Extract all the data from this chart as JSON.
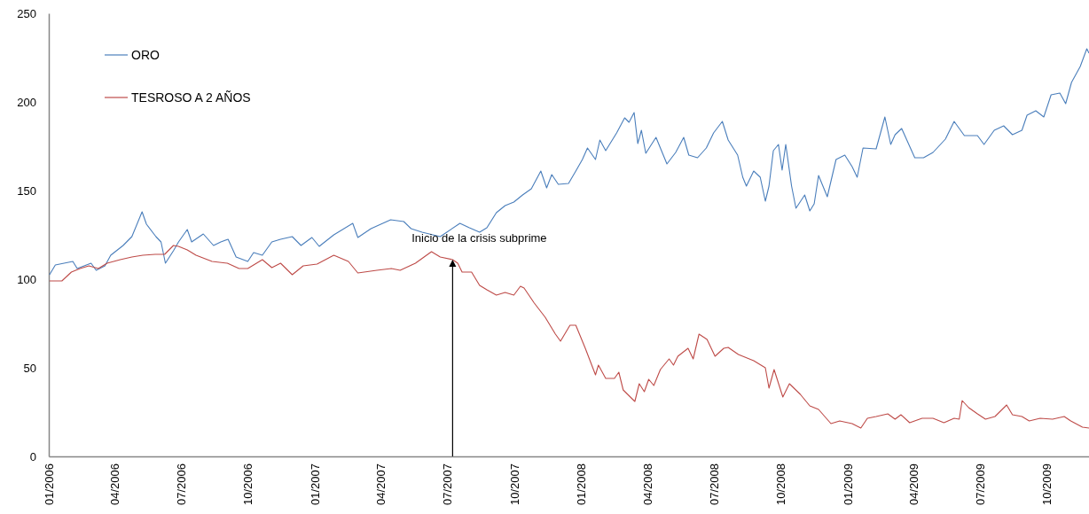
{
  "chart_data": {
    "type": "line",
    "xlim": [
      "2006-01-01",
      "2009-11-28"
    ],
    "xticks": [
      {
        "value": "2006-01-01",
        "label": "01/2006"
      },
      {
        "value": "2006-04-01",
        "label": "04/2006"
      },
      {
        "value": "2006-07-01",
        "label": "07/2006"
      },
      {
        "value": "2006-10-01",
        "label": "10/2006"
      },
      {
        "value": "2007-01-01",
        "label": "01/2007"
      },
      {
        "value": "2007-04-01",
        "label": "04/2007"
      },
      {
        "value": "2007-07-01",
        "label": "07/2007"
      },
      {
        "value": "2007-10-01",
        "label": "10/2007"
      },
      {
        "value": "2008-01-01",
        "label": "01/2008"
      },
      {
        "value": "2008-04-01",
        "label": "04/2008"
      },
      {
        "value": "2008-07-01",
        "label": "07/2008"
      },
      {
        "value": "2008-10-01",
        "label": "10/2008"
      },
      {
        "value": "2009-01-01",
        "label": "01/2009"
      },
      {
        "value": "2009-04-01",
        "label": "04/2009"
      },
      {
        "value": "2009-07-01",
        "label": "07/2009"
      },
      {
        "value": "2009-10-01",
        "label": "10/2009"
      }
    ],
    "ylim": [
      0,
      250
    ],
    "yticks": [
      0,
      50,
      100,
      150,
      200,
      250
    ],
    "grid": false,
    "legend": "top left",
    "marker": "none",
    "line_style": "solid",
    "annotations": [
      {
        "text": "Inicio de la crisis subprime",
        "x": "2007-07-09",
        "y": 111
      }
    ],
    "series": [
      {
        "name": "ORO",
        "color": "#4a7ebb",
        "x": [
          "2006-01-02",
          "2006-01-10",
          "2006-02-03",
          "2006-02-09",
          "2006-02-28",
          "2006-03-07",
          "2006-03-19",
          "2006-03-27",
          "2006-04-13",
          "2006-04-25",
          "2006-05-09",
          "2006-05-15",
          "2006-05-28",
          "2006-06-04",
          "2006-06-10",
          "2006-06-21",
          "2006-06-28",
          "2006-07-10",
          "2006-07-16",
          "2006-08-01",
          "2006-08-15",
          "2006-08-25",
          "2006-09-04",
          "2006-09-15",
          "2006-10-01",
          "2006-10-09",
          "2006-10-21",
          "2006-11-03",
          "2006-11-15",
          "2006-12-01",
          "2006-12-13",
          "2006-12-28",
          "2007-01-07",
          "2007-01-27",
          "2007-02-22",
          "2007-03-01",
          "2007-03-19",
          "2007-04-15",
          "2007-05-03",
          "2007-05-13",
          "2007-05-28",
          "2007-06-22",
          "2007-07-19",
          "2007-08-01",
          "2007-08-15",
          "2007-08-25",
          "2007-09-07",
          "2007-09-19",
          "2007-10-01",
          "2007-10-13",
          "2007-10-25",
          "2007-11-07",
          "2007-11-15",
          "2007-11-22",
          "2007-12-01",
          "2007-12-15",
          "2007-12-25",
          "2008-01-03",
          "2008-01-10",
          "2008-01-21",
          "2008-01-27",
          "2008-02-04",
          "2008-02-19",
          "2008-03-01",
          "2008-03-07",
          "2008-03-14",
          "2008-03-19",
          "2008-03-24",
          "2008-03-30",
          "2008-04-13",
          "2008-04-28",
          "2008-05-10",
          "2008-05-21",
          "2008-05-28",
          "2008-06-09",
          "2008-06-21",
          "2008-07-01",
          "2008-07-13",
          "2008-07-21",
          "2008-08-03",
          "2008-08-10",
          "2008-08-15",
          "2008-08-25",
          "2008-09-03",
          "2008-09-10",
          "2008-09-15",
          "2008-09-21",
          "2008-09-28",
          "2008-10-03",
          "2008-10-08",
          "2008-10-16",
          "2008-10-22",
          "2008-11-03",
          "2008-11-10",
          "2008-11-16",
          "2008-11-22",
          "2008-12-04",
          "2008-12-16",
          "2008-12-28",
          "2009-01-07",
          "2009-01-14",
          "2009-01-22",
          "2009-02-09",
          "2009-02-21",
          "2009-03-01",
          "2009-03-07",
          "2009-03-16",
          "2009-04-03",
          "2009-04-15",
          "2009-04-28",
          "2009-05-15",
          "2009-05-27",
          "2009-06-10",
          "2009-06-28",
          "2009-07-07",
          "2009-07-21",
          "2009-08-03",
          "2009-08-15",
          "2009-08-28",
          "2009-09-04",
          "2009-09-16",
          "2009-09-27",
          "2009-10-07",
          "2009-10-19",
          "2009-10-27",
          "2009-11-04",
          "2009-11-16",
          "2009-11-25",
          "2009-11-28"
        ],
        "values": [
          102.5,
          108,
          110,
          106,
          109,
          105,
          107.5,
          113.5,
          119,
          124,
          138,
          131,
          124,
          121,
          109,
          116,
          121,
          128,
          121,
          125.5,
          119,
          121,
          122.5,
          112.5,
          110,
          115,
          113.5,
          121,
          122.5,
          124,
          119,
          123.5,
          118.5,
          125,
          131.5,
          123.5,
          128.5,
          133.5,
          132.5,
          128.5,
          126.5,
          124,
          131.5,
          129,
          126.5,
          129,
          137.5,
          141.5,
          143.5,
          147.5,
          151,
          161,
          151.5,
          159,
          153.5,
          154,
          161,
          167.5,
          174,
          167.5,
          178.5,
          172.5,
          182.5,
          191,
          188.5,
          194,
          176.5,
          184,
          171,
          180,
          165,
          171.5,
          180,
          170,
          168.5,
          174,
          182.5,
          189,
          178.5,
          170,
          157.5,
          152.5,
          161,
          157.5,
          144,
          152.5,
          172.5,
          176,
          161.5,
          176,
          152.5,
          140,
          147.5,
          138.5,
          142.5,
          158.5,
          146.5,
          167.5,
          170,
          163.5,
          157.5,
          174,
          173.5,
          191.5,
          176,
          181.5,
          185,
          168.5,
          168.5,
          171.5,
          179,
          189,
          181,
          181,
          176,
          184,
          186.5,
          181.5,
          184,
          192.5,
          195,
          191.5,
          204,
          205,
          199,
          211,
          220,
          230,
          227.5
        ]
      },
      {
        "name": "TESROSO A 2 AÑOS",
        "color": "#be4b48",
        "x": [
          "2006-01-02",
          "2006-01-19",
          "2006-02-01",
          "2006-02-13",
          "2006-02-25",
          "2006-03-10",
          "2006-03-22",
          "2006-04-09",
          "2006-04-25",
          "2006-05-10",
          "2006-05-27",
          "2006-06-09",
          "2006-06-21",
          "2006-06-28",
          "2006-07-10",
          "2006-07-22",
          "2006-08-13",
          "2006-09-03",
          "2006-09-19",
          "2006-10-01",
          "2006-10-21",
          "2006-11-03",
          "2006-11-15",
          "2006-12-01",
          "2006-12-16",
          "2007-01-04",
          "2007-01-27",
          "2007-02-16",
          "2007-03-01",
          "2007-03-27",
          "2007-04-16",
          "2007-04-28",
          "2007-05-19",
          "2007-06-10",
          "2007-06-22",
          "2007-07-09",
          "2007-07-16",
          "2007-07-22",
          "2007-08-04",
          "2007-08-15",
          "2007-08-25",
          "2007-09-07",
          "2007-09-19",
          "2007-10-01",
          "2007-10-10",
          "2007-10-15",
          "2007-10-29",
          "2007-11-13",
          "2007-11-27",
          "2007-12-04",
          "2007-12-17",
          "2007-12-25",
          "2008-01-07",
          "2008-01-21",
          "2008-01-25",
          "2008-02-04",
          "2008-02-16",
          "2008-02-22",
          "2008-02-28",
          "2008-03-15",
          "2008-03-21",
          "2008-03-28",
          "2008-04-03",
          "2008-04-10",
          "2008-04-19",
          "2008-05-01",
          "2008-05-07",
          "2008-05-13",
          "2008-05-27",
          "2008-06-03",
          "2008-06-11",
          "2008-06-22",
          "2008-07-03",
          "2008-07-15",
          "2008-07-21",
          "2008-08-04",
          "2008-08-25",
          "2008-09-10",
          "2008-09-15",
          "2008-09-22",
          "2008-10-04",
          "2008-10-13",
          "2008-10-28",
          "2008-11-10",
          "2008-11-22",
          "2008-12-09",
          "2008-12-21",
          "2009-01-07",
          "2009-01-19",
          "2009-01-28",
          "2009-02-09",
          "2009-02-25",
          "2009-03-07",
          "2009-03-15",
          "2009-03-27",
          "2009-04-13",
          "2009-04-28",
          "2009-05-13",
          "2009-05-27",
          "2009-06-03",
          "2009-06-07",
          "2009-06-16",
          "2009-06-28",
          "2009-07-09",
          "2009-07-22",
          "2009-08-07",
          "2009-08-15",
          "2009-08-28",
          "2009-09-07",
          "2009-09-22",
          "2009-10-09",
          "2009-10-25",
          "2009-11-03",
          "2009-11-19",
          "2009-11-28"
        ],
        "values": [
          99,
          99,
          104,
          106,
          107.5,
          106,
          109,
          111,
          112.5,
          113.5,
          114,
          114,
          119,
          118.5,
          116.5,
          113.5,
          110,
          109,
          106,
          106,
          111,
          106.5,
          109,
          102.5,
          107.5,
          108.5,
          113.5,
          110,
          103.5,
          105,
          106,
          105,
          109,
          115.5,
          112.5,
          111,
          109,
          104,
          104,
          96.5,
          94,
          91,
          92.5,
          91,
          96,
          95,
          86.5,
          78.5,
          69,
          65,
          74,
          74,
          61,
          46,
          51.5,
          44,
          44,
          47.5,
          37.5,
          31,
          41,
          36.5,
          43.5,
          40,
          49,
          55,
          51.5,
          56.5,
          61,
          55,
          69,
          66,
          56.5,
          61,
          61.5,
          57.5,
          54,
          50,
          38.5,
          49,
          33.5,
          41,
          35,
          28.5,
          26.5,
          18.5,
          20,
          18.5,
          16,
          21.5,
          22.5,
          24,
          21,
          23.5,
          19,
          21.5,
          21.5,
          19,
          21.5,
          21,
          31.5,
          27.5,
          24,
          21,
          22.5,
          29,
          23.5,
          22.5,
          20,
          21.5,
          21,
          22.5,
          20,
          16.5,
          16
        ]
      }
    ]
  }
}
